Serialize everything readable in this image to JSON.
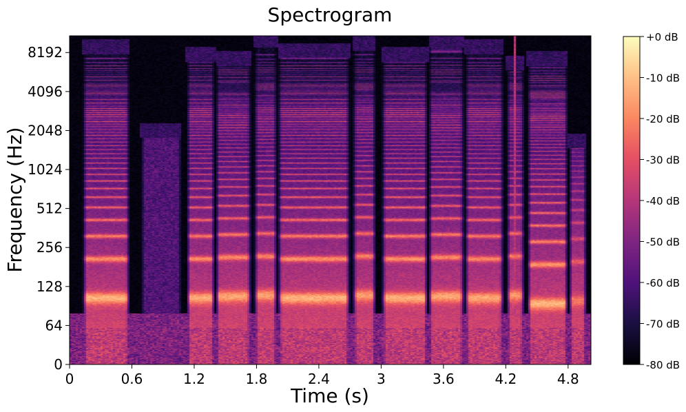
{
  "chart_data": {
    "type": "heatmap",
    "title": "Spectrogram",
    "xlabel": "Time (s)",
    "ylabel": "Frequency (Hz)",
    "xlim": [
      0,
      5.02
    ],
    "ylim_hz": [
      0,
      11025
    ],
    "y_scale": "log2 (symmetric-log, linear near 0)",
    "x_ticks": [
      "0",
      "0.6",
      "1.2",
      "1.8",
      "2.4",
      "3",
      "3.6",
      "4.2",
      "4.8"
    ],
    "x_tick_values": [
      0,
      0.6,
      1.2,
      1.8,
      2.4,
      3.0,
      3.6,
      4.2,
      4.8
    ],
    "y_ticks": [
      "0",
      "64",
      "128",
      "256",
      "512",
      "1024",
      "2048",
      "4096",
      "8192"
    ],
    "y_tick_values": [
      0,
      64,
      128,
      256,
      512,
      1024,
      2048,
      4096,
      8192
    ],
    "colorbar": {
      "label_format": "dB",
      "range": [
        -80,
        0
      ],
      "ticks": [
        "+0 dB",
        "-10 dB",
        "-20 dB",
        "-30 dB",
        "-40 dB",
        "-50 dB",
        "-60 dB",
        "-70 dB",
        "-80 dB"
      ],
      "tick_values": [
        0,
        -10,
        -20,
        -30,
        -40,
        -50,
        -60,
        -70,
        -80
      ],
      "colormap": "magma"
    },
    "segments": [
      {
        "start": 0.12,
        "end": 0.58,
        "type": "voiced",
        "f0": 105,
        "top_hz": 8000,
        "energy": 1.0
      },
      {
        "start": 0.68,
        "end": 1.08,
        "type": "breath",
        "top_hz": 1800,
        "energy": 0.45
      },
      {
        "start": 1.12,
        "end": 1.4,
        "type": "voiced",
        "f0": 105,
        "top_hz": 7000,
        "energy": 0.95
      },
      {
        "start": 1.4,
        "end": 1.75,
        "type": "voiced",
        "f0": 108,
        "top_hz": 6500,
        "energy": 0.95
      },
      {
        "start": 1.77,
        "end": 2.0,
        "type": "voiced",
        "f0": 110,
        "top_hz": 9000,
        "energy": 0.9
      },
      {
        "start": 2.0,
        "end": 2.7,
        "type": "voiced",
        "f0": 105,
        "top_hz": 7500,
        "energy": 1.0
      },
      {
        "start": 2.72,
        "end": 2.95,
        "type": "voiced",
        "f0": 110,
        "top_hz": 8500,
        "energy": 0.9
      },
      {
        "start": 3.0,
        "end": 3.45,
        "type": "voiced",
        "f0": 105,
        "top_hz": 7000,
        "energy": 1.0
      },
      {
        "start": 3.45,
        "end": 3.8,
        "type": "voiced",
        "f0": 108,
        "top_hz": 9000,
        "energy": 0.95
      },
      {
        "start": 3.8,
        "end": 4.18,
        "type": "voiced",
        "f0": 105,
        "top_hz": 8000,
        "energy": 0.95
      },
      {
        "start": 4.2,
        "end": 4.38,
        "type": "voiced",
        "f0": 110,
        "top_hz": 6000,
        "energy": 0.85
      },
      {
        "start": 4.4,
        "end": 4.8,
        "type": "voiced",
        "f0": 95,
        "top_hz": 6500,
        "energy": 1.0
      },
      {
        "start": 4.8,
        "end": 4.98,
        "type": "voiced",
        "f0": 100,
        "top_hz": 1500,
        "energy": 0.6
      }
    ]
  }
}
